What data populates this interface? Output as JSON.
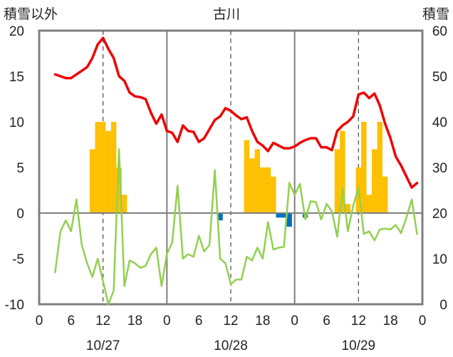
{
  "chart_data": {
    "type": "bar+line",
    "title": "古川",
    "ylabel_left": "積雪以外",
    "ylabel_right": "積雪",
    "ylim_left": [
      -10,
      20
    ],
    "ylim_right": [
      0,
      60
    ],
    "yticks_left": [
      "20",
      "15",
      "10",
      "5",
      "0",
      "-5",
      "-10"
    ],
    "yticks_right": [
      "60",
      "50",
      "40",
      "30",
      "20",
      "10",
      "0"
    ],
    "x_hours": [
      0,
      72
    ],
    "xticks": [
      "0",
      "6",
      "12",
      "18",
      "0",
      "6",
      "12",
      "18",
      "0",
      "6",
      "12",
      "18",
      "0"
    ],
    "date_labels": [
      "10/27",
      "10/28",
      "10/29"
    ],
    "grid": "vertical day lines solid, noon lines dashed",
    "colors": {
      "red_line": "#ee0000",
      "green_line": "#92d050",
      "bar_positive": "#ffc000",
      "bar_negative": "#0070c0",
      "axis": "#7f7f7f",
      "dashed": "#555555"
    },
    "series": [
      {
        "axis": "right",
        "kind": "line",
        "color_key": "red_line",
        "points": [
          [
            3,
            50.4
          ],
          [
            4,
            50.0
          ],
          [
            5,
            49.6
          ],
          [
            6,
            49.6
          ],
          [
            7,
            50.4
          ],
          [
            8,
            51.2
          ],
          [
            9,
            52.0
          ],
          [
            10,
            54.0
          ],
          [
            11,
            57.0
          ],
          [
            12,
            58.4
          ],
          [
            13,
            56.0
          ],
          [
            14,
            54.0
          ],
          [
            15,
            50.0
          ],
          [
            16,
            49.0
          ],
          [
            17,
            46.4
          ],
          [
            18,
            45.6
          ],
          [
            19,
            45.4
          ],
          [
            20,
            45.0
          ],
          [
            21,
            42.0
          ],
          [
            22,
            39.6
          ],
          [
            23,
            41.6
          ],
          [
            24,
            38.0
          ],
          [
            25,
            37.6
          ],
          [
            26,
            35.6
          ],
          [
            27,
            39.2
          ],
          [
            28,
            38.0
          ],
          [
            29,
            37.8
          ],
          [
            30,
            35.6
          ],
          [
            31,
            36.4
          ],
          [
            32,
            38.4
          ],
          [
            33,
            40.4
          ],
          [
            34,
            41.2
          ],
          [
            35,
            43.0
          ],
          [
            36,
            42.4
          ],
          [
            37,
            41.4
          ],
          [
            38,
            40.6
          ],
          [
            39,
            41.0
          ],
          [
            40,
            38.0
          ],
          [
            41,
            35.6
          ],
          [
            42,
            34.8
          ],
          [
            43,
            33.6
          ],
          [
            44,
            35.4
          ],
          [
            45,
            34.8
          ],
          [
            46,
            34.2
          ],
          [
            47,
            34.2
          ],
          [
            48,
            34.6
          ],
          [
            49,
            35.4
          ],
          [
            50,
            36.0
          ],
          [
            51,
            36.4
          ],
          [
            52,
            36.4
          ],
          [
            53,
            34.4
          ],
          [
            54,
            34.4
          ],
          [
            55,
            33.8
          ],
          [
            56,
            38.0
          ],
          [
            57,
            39.2
          ],
          [
            58,
            40.0
          ],
          [
            59,
            41.2
          ],
          [
            60,
            46.0
          ],
          [
            61,
            46.4
          ],
          [
            62,
            45.2
          ],
          [
            63,
            46.2
          ],
          [
            64,
            43.6
          ],
          [
            65,
            39.6
          ],
          [
            66,
            36.4
          ],
          [
            67,
            32.4
          ],
          [
            68,
            30.4
          ],
          [
            69,
            28.0
          ],
          [
            70,
            25.6
          ],
          [
            71,
            26.6
          ]
        ]
      },
      {
        "axis": "left",
        "kind": "line",
        "color_key": "green_line",
        "points": [
          [
            3,
            -6.5
          ],
          [
            4,
            -2.0
          ],
          [
            5,
            -0.8
          ],
          [
            6,
            -2.0
          ],
          [
            7,
            1.5
          ],
          [
            8,
            -3.5
          ],
          [
            9,
            -5.5
          ],
          [
            10,
            -7.0
          ],
          [
            11,
            -5.0
          ],
          [
            12,
            -7.5
          ],
          [
            13,
            -10.0
          ],
          [
            14,
            -8.5
          ],
          [
            15,
            7.0
          ],
          [
            16,
            -8.0
          ],
          [
            17,
            -5.2
          ],
          [
            18,
            -5.5
          ],
          [
            19,
            -6.0
          ],
          [
            20,
            -5.8
          ],
          [
            21,
            -4.5
          ],
          [
            22,
            -3.8
          ],
          [
            23,
            -8.0
          ],
          [
            24,
            -4.5
          ],
          [
            25,
            -3.2
          ],
          [
            26,
            3.0
          ],
          [
            27,
            -5.0
          ],
          [
            28,
            -4.5
          ],
          [
            29,
            -4.8
          ],
          [
            30,
            -2.5
          ],
          [
            31,
            -4.2
          ],
          [
            32,
            -3.5
          ],
          [
            33,
            4.7
          ],
          [
            34,
            -5.0
          ],
          [
            35,
            -5.5
          ],
          [
            36,
            -7.8
          ],
          [
            37,
            -7.3
          ],
          [
            38,
            -7.3
          ],
          [
            39,
            -4.8
          ],
          [
            40,
            -5.2
          ],
          [
            41,
            -3.8
          ],
          [
            42,
            -5.0
          ],
          [
            43,
            -1.0
          ],
          [
            44,
            -4.0
          ],
          [
            45,
            -3.8
          ],
          [
            46,
            -3.7
          ],
          [
            47,
            3.3
          ],
          [
            48,
            2.0
          ],
          [
            49,
            3.2
          ],
          [
            50,
            -0.7
          ],
          [
            51,
            1.3
          ],
          [
            52,
            1.2
          ],
          [
            53,
            -0.7
          ],
          [
            54,
            1.0
          ],
          [
            55,
            0.2
          ],
          [
            56,
            -2.6
          ],
          [
            57,
            2.7
          ],
          [
            58,
            -2.0
          ],
          [
            59,
            0.8
          ],
          [
            60,
            2.8
          ],
          [
            61,
            -2.3
          ],
          [
            62,
            -2.0
          ],
          [
            63,
            -3.0
          ],
          [
            64,
            -1.8
          ],
          [
            65,
            -1.7
          ],
          [
            66,
            -1.8
          ],
          [
            67,
            -1.3
          ],
          [
            68,
            -2.2
          ],
          [
            69,
            -0.5
          ],
          [
            70,
            1.5
          ],
          [
            71,
            -2.3
          ]
        ]
      },
      {
        "axis": "left",
        "kind": "bar",
        "bars": [
          [
            10,
            7.0
          ],
          [
            11,
            10.0
          ],
          [
            12,
            10.0
          ],
          [
            13,
            9.0
          ],
          [
            14,
            10.0
          ],
          [
            15,
            5.0
          ],
          [
            16,
            2.0
          ],
          [
            34,
            -0.8
          ],
          [
            39,
            8.0
          ],
          [
            40,
            6.0
          ],
          [
            41,
            7.0
          ],
          [
            42,
            5.0
          ],
          [
            43,
            5.0
          ],
          [
            44,
            4.0
          ],
          [
            45,
            -0.5
          ],
          [
            46,
            -0.5
          ],
          [
            47,
            -1.5
          ],
          [
            50,
            -0.5
          ],
          [
            56,
            7.0
          ],
          [
            57,
            9.0
          ],
          [
            58,
            1.0
          ],
          [
            60,
            5.0
          ],
          [
            61,
            10.0
          ],
          [
            62,
            2.0
          ],
          [
            63,
            7.0
          ],
          [
            64,
            10.0
          ],
          [
            65,
            4.0
          ]
        ]
      }
    ]
  }
}
